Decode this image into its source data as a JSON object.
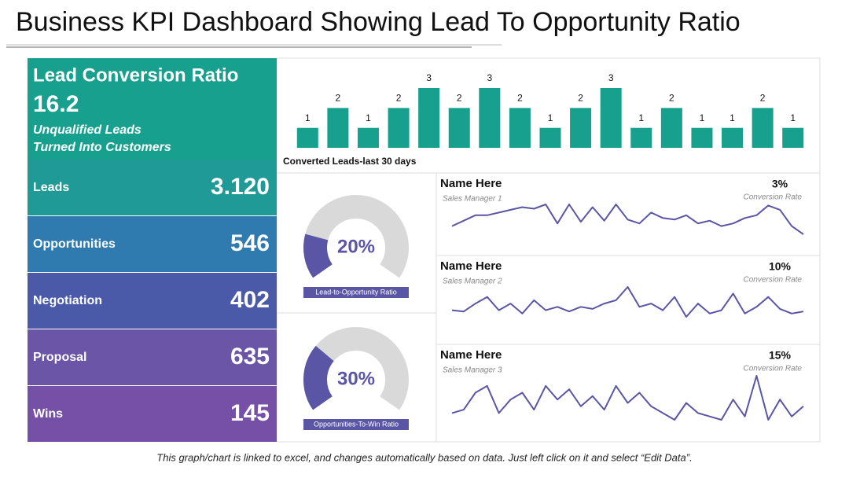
{
  "header": {
    "title": "Business KPI Dashboard Showing Lead To Opportunity Ratio"
  },
  "kpi": {
    "title": "Lead Conversion Ratio",
    "value": "16.2",
    "subtitle_lines": [
      "Unqualified Leads",
      "Turned Into Customers"
    ],
    "rows": [
      {
        "label": "Leads",
        "value": "3.120",
        "color": "#1f9a97"
      },
      {
        "label": "Opportunities",
        "value": "546",
        "color": "#2f7bb0"
      },
      {
        "label": "Negotiation",
        "value": "402",
        "color": "#4a5aa8"
      },
      {
        "label": "Proposal",
        "value": "635",
        "color": "#6a55a6"
      },
      {
        "label": "Wins",
        "value": "145",
        "color": "#7650a6"
      }
    ],
    "color": "#17a08e"
  },
  "chart_data": [
    {
      "type": "bar",
      "x_label": "Converted Leads-last 30 days",
      "color": "#17a08e",
      "categories": [
        null,
        null,
        null,
        null,
        null,
        null,
        null,
        null,
        null,
        null,
        null,
        null,
        null,
        null,
        null,
        null,
        null
      ],
      "values": [
        1,
        2,
        1,
        2,
        3,
        2,
        3,
        2,
        1,
        2,
        3,
        1,
        2,
        1,
        1,
        2,
        1
      ]
    },
    {
      "type": "gauge",
      "value": 20,
      "value_label": "20%",
      "ylim": [
        0,
        100
      ],
      "label": "Lead-to-Opportunity Ratio",
      "color": "#5b55a6",
      "track_color": "#d9d9d9"
    },
    {
      "type": "gauge",
      "value": 30,
      "value_label": "30%",
      "ylim": [
        0,
        100
      ],
      "label": "Opportunities-To-Win Ratio",
      "color": "#5b55a6",
      "track_color": "#d9d9d9"
    },
    {
      "type": "line",
      "title": "Name Here",
      "subtitle": "Sales Manager 1",
      "annotations": [
        "3%",
        "Conversion Rate"
      ],
      "color": "#5b55a6",
      "values": [
        3,
        4,
        5,
        5,
        5.5,
        6,
        6.5,
        6.2,
        7,
        3.5,
        7,
        3.8,
        6.5,
        4,
        7,
        4.2,
        3.5,
        5.5,
        4.5,
        4.2,
        5,
        3.5,
        4,
        3,
        3.5,
        4.5,
        5,
        6.8,
        6,
        3,
        1.5
      ]
    },
    {
      "type": "line",
      "title": "Name Here",
      "subtitle": "Sales Manager 2",
      "annotations": [
        "10%",
        "Conversion Rate"
      ],
      "color": "#5b55a6",
      "values": [
        3,
        2.8,
        4,
        5,
        3,
        4,
        2.5,
        4.5,
        3,
        3.5,
        2.8,
        3.5,
        3.2,
        4,
        4.5,
        6.5,
        3.5,
        4,
        3,
        5,
        2,
        4,
        2.5,
        3,
        5.5,
        2.5,
        3.5,
        5,
        3.2,
        2.5,
        2.8
      ]
    },
    {
      "type": "line",
      "title": "Name Here",
      "subtitle": "Sales Manager 3",
      "annotations": [
        "15%",
        "Conversion Rate"
      ],
      "color": "#5b55a6",
      "values": [
        3,
        3.5,
        6,
        7,
        3,
        5,
        6,
        3.5,
        7,
        5,
        6.5,
        4,
        5.5,
        3.5,
        7,
        4.5,
        6,
        4,
        3,
        2,
        4.5,
        3,
        2.5,
        2,
        5,
        2.5,
        8.5,
        2,
        5,
        2.5,
        4
      ]
    }
  ],
  "footer": {
    "note": "This graph/chart is linked to excel, and changes automatically based on data. Just left click on it and select “Edit Data”."
  }
}
